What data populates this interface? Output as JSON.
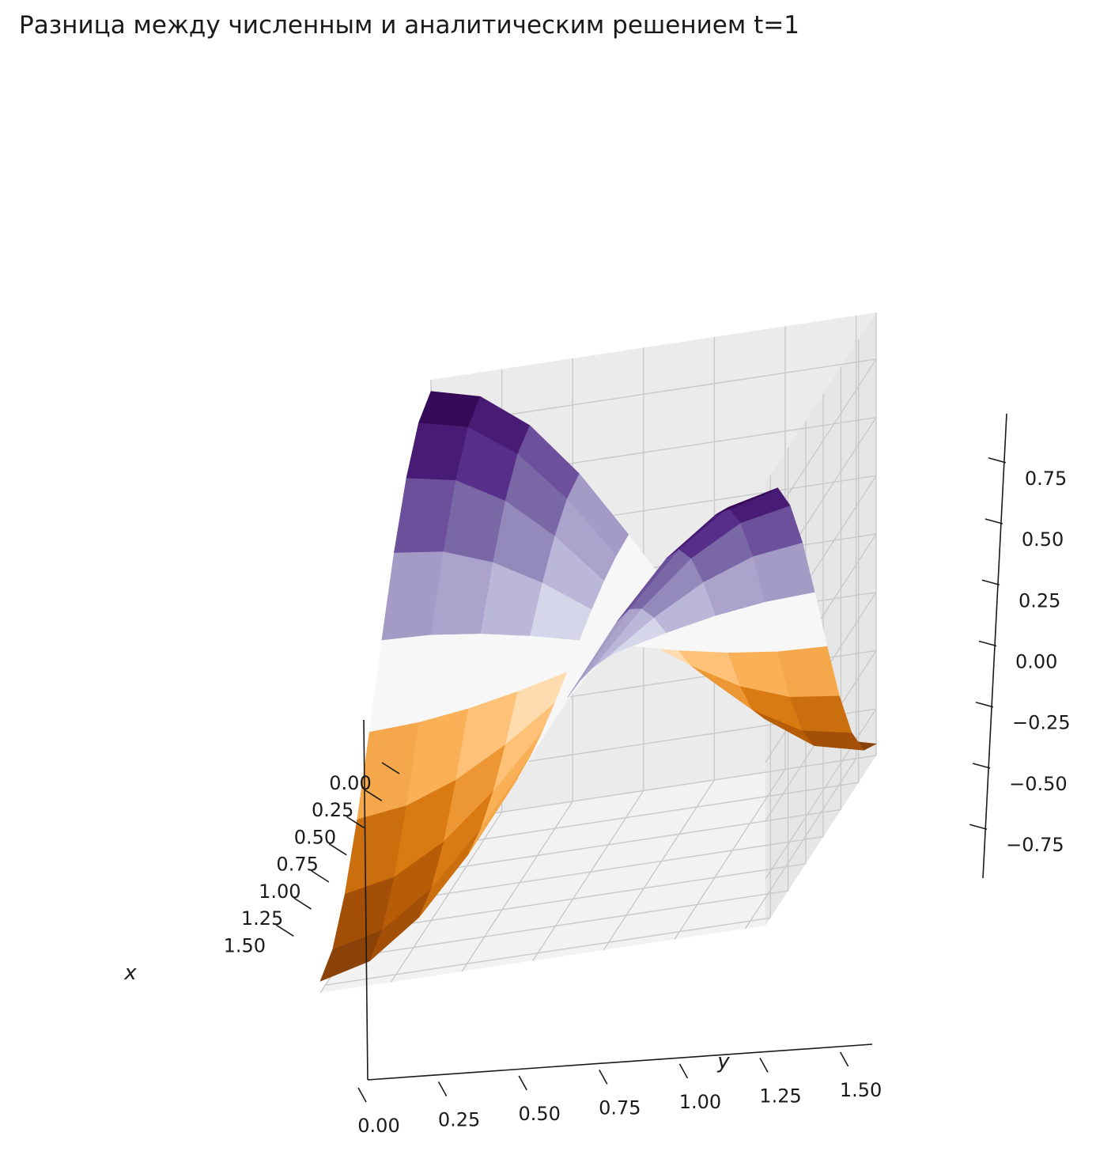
{
  "chart_data": {
    "type": "surface3d",
    "title": "Разница между численным и аналитическим решением t=1",
    "xlabel": "x",
    "ylabel": "y",
    "zlabel": "",
    "xlim": [
      0,
      1.5708
    ],
    "ylim": [
      0,
      1.5708
    ],
    "zlim": [
      -0.95,
      0.95
    ],
    "x_ticks": [
      "0.00",
      "0.25",
      "0.50",
      "0.75",
      "1.00",
      "1.25",
      "1.50"
    ],
    "y_ticks": [
      "0.00",
      "0.25",
      "0.50",
      "0.75",
      "1.00",
      "1.25",
      "1.50"
    ],
    "z_ticks": [
      "−0.75",
      "−0.50",
      "−0.25",
      "0.00",
      "0.25",
      "0.50",
      "0.75"
    ],
    "x_tick_values": [
      0,
      0.25,
      0.5,
      0.75,
      1.0,
      1.25,
      1.5
    ],
    "y_tick_values": [
      0,
      0.25,
      0.5,
      0.75,
      1.0,
      1.25,
      1.5
    ],
    "z_tick_values": [
      -0.75,
      -0.5,
      -0.25,
      0,
      0.25,
      0.5,
      0.75
    ],
    "x": [
      0,
      0.1745,
      0.3491,
      0.5236,
      0.6981,
      0.8727,
      1.0472,
      1.2217,
      1.3963,
      1.5708
    ],
    "y": [
      0,
      0.1745,
      0.3491,
      0.5236,
      0.6981,
      0.8727,
      1.0472,
      1.2217,
      1.3963,
      1.5708
    ],
    "z_formula": "cos(2x)*cos(2y)*0.9",
    "colormap": "PuOr",
    "grid": true
  }
}
